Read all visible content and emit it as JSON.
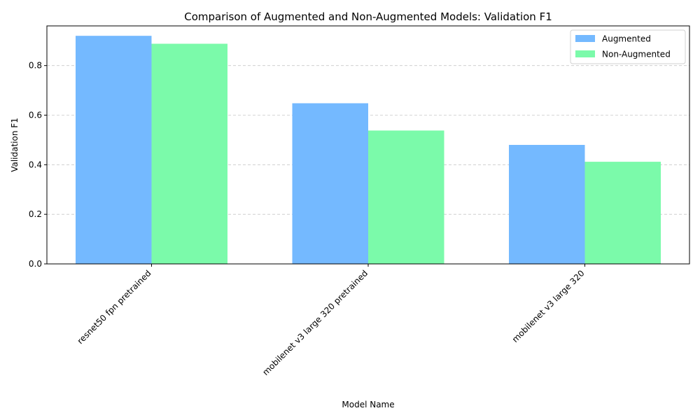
{
  "chart_data": {
    "type": "bar",
    "title": "Comparison of Augmented and Non-Augmented Models: Validation F1",
    "xlabel": "Model Name",
    "ylabel": "Validation F1",
    "categories": [
      "resnet50 fpn pretrained",
      "mobilenet v3 large 320 pretrained",
      "mobilenet v3 large 320"
    ],
    "series": [
      {
        "name": "Augmented",
        "values": [
          0.92,
          0.648,
          0.48
        ],
        "color": "#74b9ff"
      },
      {
        "name": "Non-Augmented",
        "values": [
          0.888,
          0.538,
          0.412
        ],
        "color": "#7bfaaa"
      }
    ],
    "ylim": [
      0,
      0.96
    ],
    "yticks": [
      0.0,
      0.2,
      0.4,
      0.6,
      0.8
    ],
    "ytick_labels": [
      "0.0",
      "0.2",
      "0.4",
      "0.6",
      "0.8"
    ],
    "grid": "y-dashed",
    "legend_position": "top-right"
  }
}
